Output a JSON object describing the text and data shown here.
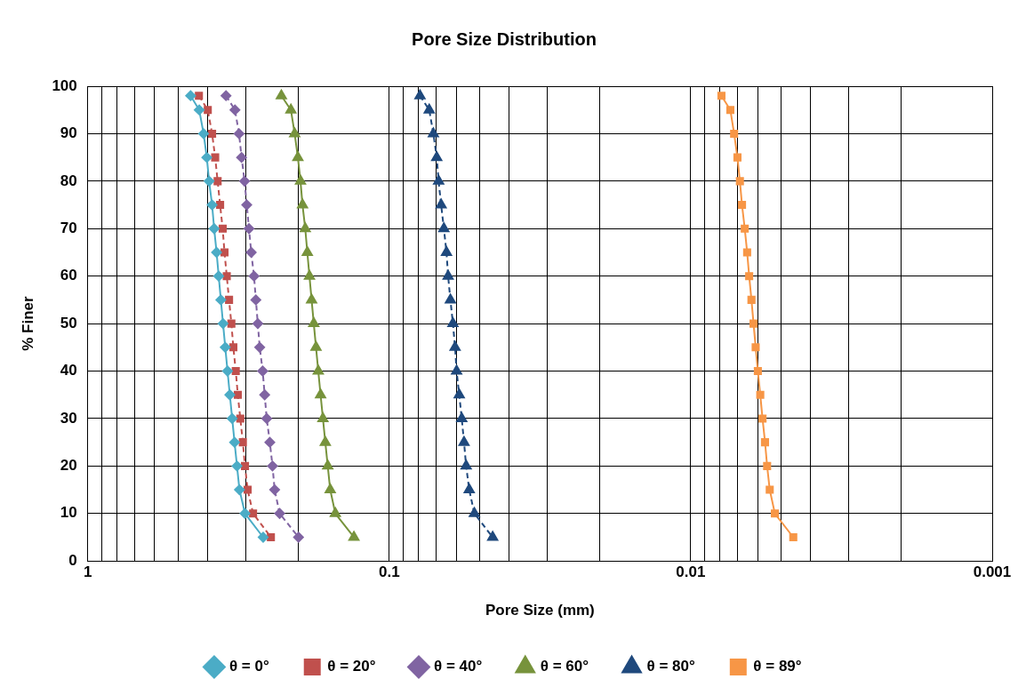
{
  "chart_data": {
    "type": "line",
    "title": "Pore Size Distribution",
    "xlabel": "Pore Size (mm)",
    "ylabel": "% Finer",
    "log": "x",
    "xlim": [
      1,
      0.001
    ],
    "xticks": [
      1,
      {
        "value": 0.9,
        "label": null
      },
      {
        "value": 0.8,
        "label": null
      },
      {
        "value": 0.7,
        "label": null
      },
      {
        "value": 0.6,
        "label": null
      },
      {
        "value": 0.5,
        "label": null
      },
      {
        "value": 0.4,
        "label": null
      },
      {
        "value": 0.3,
        "label": null
      },
      {
        "value": 0.2,
        "label": null
      },
      0.1,
      {
        "value": 0.09,
        "label": null
      },
      {
        "value": 0.08,
        "label": null
      },
      {
        "value": 0.07,
        "label": null
      },
      {
        "value": 0.06,
        "label": null
      },
      {
        "value": 0.05,
        "label": null
      },
      {
        "value": 0.04,
        "label": null
      },
      {
        "value": 0.03,
        "label": null
      },
      {
        "value": 0.02,
        "label": null
      },
      0.01,
      {
        "value": 0.009,
        "label": null
      },
      {
        "value": 0.008,
        "label": null
      },
      {
        "value": 0.007,
        "label": null
      },
      {
        "value": 0.006,
        "label": null
      },
      {
        "value": 0.005,
        "label": null
      },
      {
        "value": 0.004,
        "label": null
      },
      {
        "value": 0.003,
        "label": null
      },
      {
        "value": 0.002,
        "label": null
      },
      0.001
    ],
    "ylim": [
      0,
      100
    ],
    "yticks": [
      0,
      10,
      20,
      30,
      40,
      50,
      60,
      70,
      80,
      90,
      100
    ],
    "grid": true,
    "legend": "bottom",
    "series": [
      {
        "name": "θ = 0°",
        "color": "#4bacc6",
        "marker": "diamond",
        "line_style": "solid",
        "x": [
          0.456,
          0.427,
          0.413,
          0.403,
          0.396,
          0.387,
          0.381,
          0.374,
          0.368,
          0.362,
          0.356,
          0.35,
          0.344,
          0.338,
          0.332,
          0.326,
          0.32,
          0.314,
          0.301,
          0.262
        ],
        "values": [
          98,
          95,
          90,
          85,
          80,
          75,
          70,
          65,
          60,
          55,
          50,
          45,
          40,
          35,
          30,
          25,
          20,
          15,
          10,
          5
        ]
      },
      {
        "name": "θ = 20°",
        "color": "#c0504d",
        "marker": "square",
        "line_style": "dashed",
        "x": [
          0.428,
          0.4,
          0.387,
          0.378,
          0.371,
          0.364,
          0.357,
          0.352,
          0.346,
          0.34,
          0.334,
          0.329,
          0.323,
          0.318,
          0.312,
          0.306,
          0.301,
          0.295,
          0.283,
          0.247
        ],
        "values": [
          98,
          95,
          90,
          85,
          80,
          75,
          70,
          65,
          60,
          55,
          50,
          45,
          40,
          35,
          30,
          25,
          20,
          15,
          10,
          5
        ]
      },
      {
        "name": "θ = 40°",
        "color": "#8064a2",
        "marker": "diamond",
        "line_style": "dashed",
        "x": [
          0.348,
          0.325,
          0.315,
          0.309,
          0.302,
          0.297,
          0.292,
          0.287,
          0.281,
          0.277,
          0.273,
          0.269,
          0.263,
          0.259,
          0.255,
          0.249,
          0.244,
          0.24,
          0.231,
          0.2
        ],
        "values": [
          98,
          95,
          90,
          85,
          80,
          75,
          70,
          65,
          60,
          55,
          50,
          45,
          40,
          35,
          30,
          25,
          20,
          15,
          10,
          5
        ]
      },
      {
        "name": "θ = 60°",
        "color": "#77933c",
        "marker": "triangle",
        "line_style": "solid",
        "x": [
          0.228,
          0.212,
          0.206,
          0.201,
          0.197,
          0.194,
          0.19,
          0.187,
          0.184,
          0.181,
          0.178,
          0.175,
          0.172,
          0.169,
          0.166,
          0.163,
          0.16,
          0.157,
          0.151,
          0.131
        ],
        "values": [
          98,
          95,
          90,
          85,
          80,
          75,
          70,
          65,
          60,
          55,
          50,
          45,
          40,
          35,
          30,
          25,
          20,
          15,
          10,
          5
        ]
      },
      {
        "name": "θ = 80°",
        "color": "#1f497d",
        "marker": "triangle",
        "line_style": "dashed",
        "x": [
          0.0791,
          0.0737,
          0.0714,
          0.0696,
          0.0686,
          0.0673,
          0.0659,
          0.0646,
          0.0638,
          0.0627,
          0.0615,
          0.0605,
          0.0598,
          0.0586,
          0.0575,
          0.0565,
          0.0556,
          0.0543,
          0.0522,
          0.0454
        ],
        "values": [
          98,
          95,
          90,
          85,
          80,
          75,
          70,
          65,
          60,
          55,
          50,
          45,
          40,
          35,
          30,
          25,
          20,
          15,
          10,
          5
        ]
      },
      {
        "name": "θ = 89°",
        "color": "#f79646",
        "marker": "square",
        "line_style": "solid",
        "x": [
          0.00791,
          0.00739,
          0.00718,
          0.007,
          0.00687,
          0.00676,
          0.00662,
          0.0065,
          0.0064,
          0.00629,
          0.00619,
          0.00609,
          0.00599,
          0.00588,
          0.00578,
          0.00567,
          0.00558,
          0.00547,
          0.00526,
          0.00457
        ],
        "values": [
          98,
          95,
          90,
          85,
          80,
          75,
          70,
          65,
          60,
          55,
          50,
          45,
          40,
          35,
          30,
          25,
          20,
          15,
          10,
          5
        ]
      }
    ]
  }
}
